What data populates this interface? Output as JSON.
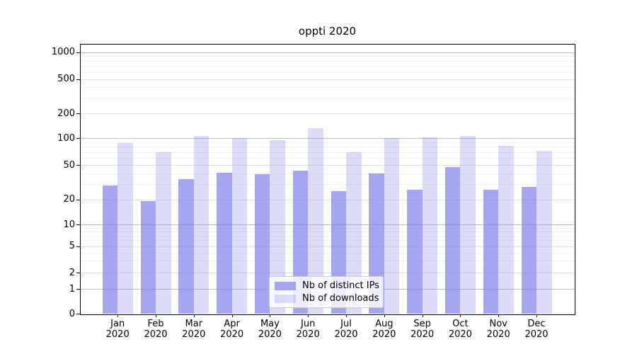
{
  "chart_data": {
    "type": "bar",
    "title": "oppti 2020",
    "categories": [
      "Jan 2020",
      "Feb 2020",
      "Mar 2020",
      "Apr 2020",
      "May 2020",
      "Jun 2020",
      "Jul 2020",
      "Aug 2020",
      "Sep 2020",
      "Oct 2020",
      "Nov 2020",
      "Dec 2020"
    ],
    "series": [
      {
        "name": "Nb of distinct IPs",
        "values": [
          29,
          19,
          34,
          41,
          39,
          43,
          25,
          40,
          26,
          47,
          26,
          28
        ],
        "color": "rgba(131,131,234,0.72)"
      },
      {
        "name": "Nb of downloads",
        "values": [
          88,
          70,
          107,
          100,
          95,
          132,
          70,
          100,
          103,
          107,
          82,
          72
        ],
        "color": "rgba(131,131,234,0.28)"
      }
    ],
    "yscale": "symlog",
    "y_ticks": [
      1000,
      500,
      200,
      100,
      50,
      20,
      10,
      5,
      2,
      1,
      0
    ],
    "ylim": [
      0,
      1300
    ],
    "grid": true,
    "legend_position": "lower center",
    "colors": {
      "bar_base": "#8383ea",
      "grid_major": "#bdbdbd",
      "grid_medium": "#e1e1e1",
      "grid_minor": "#f0f0f0",
      "axis": "#000000"
    }
  }
}
